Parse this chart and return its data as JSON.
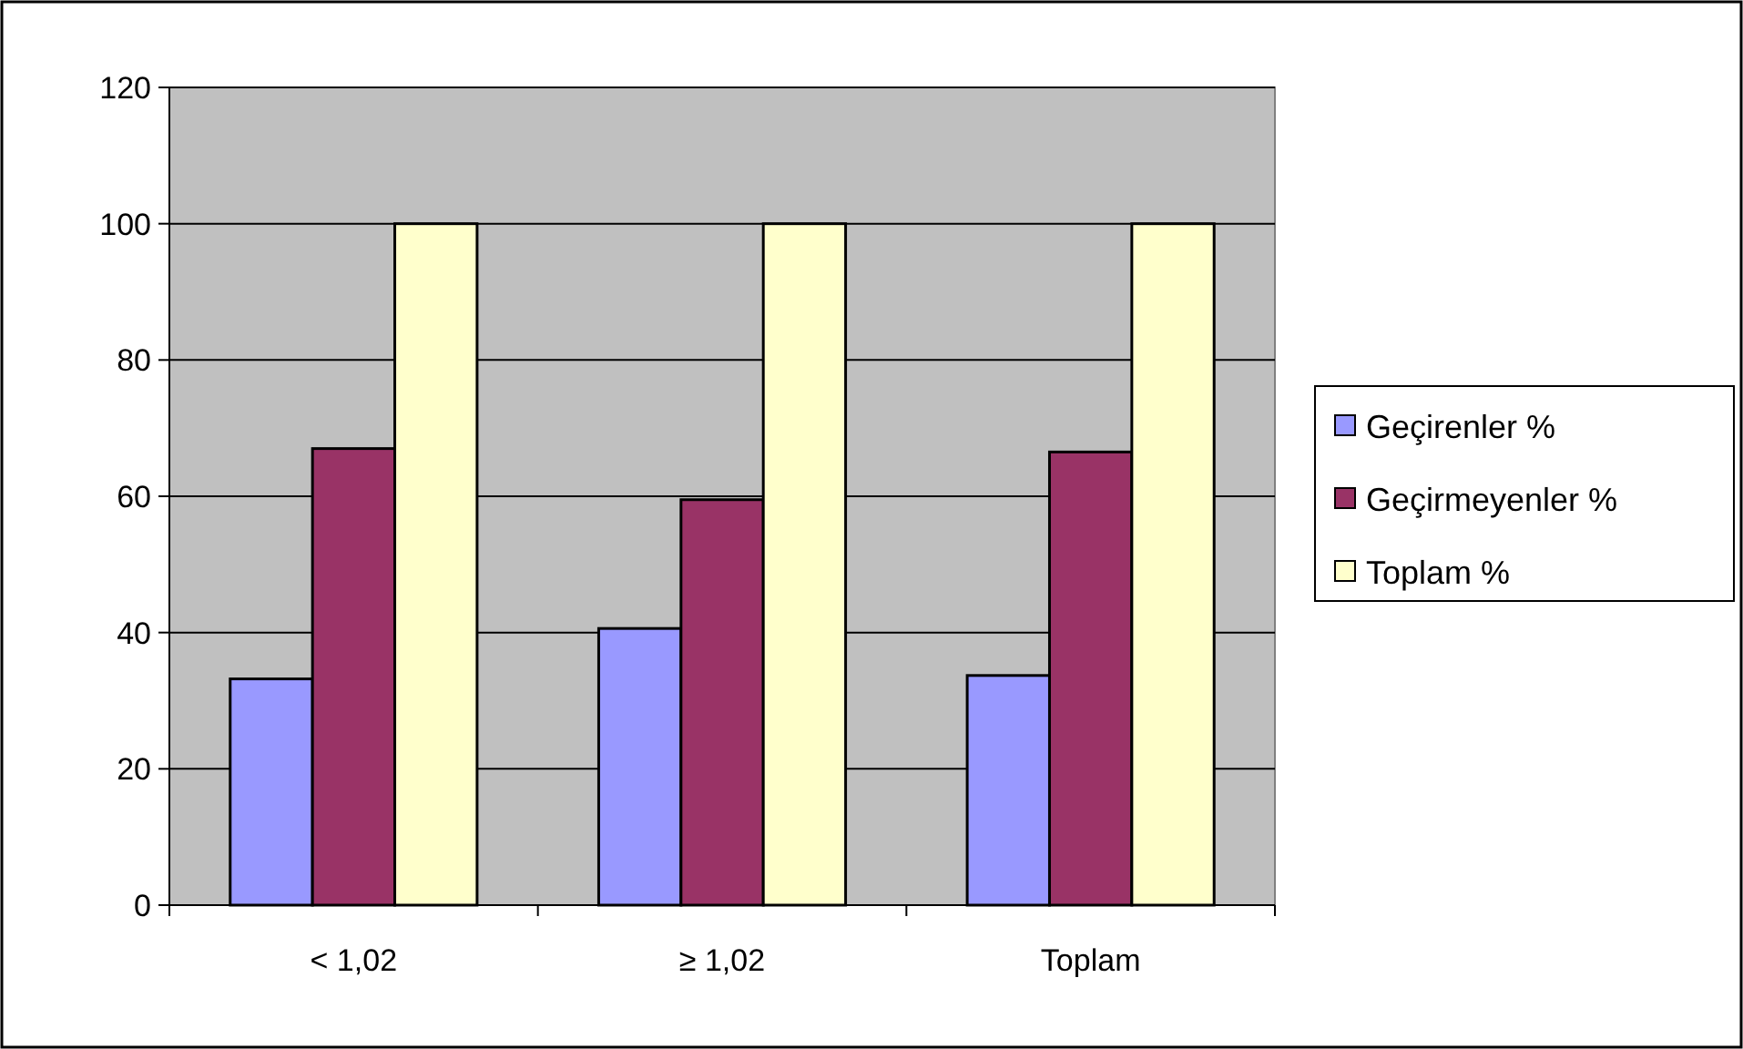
{
  "chart_data": {
    "type": "bar",
    "categories": [
      "< 1,02",
      "≥ 1,02",
      "Toplam"
    ],
    "series": [
      {
        "name": "Geçirenler %",
        "color": "#9999ff",
        "values": [
          33.2,
          40.6,
          33.7
        ]
      },
      {
        "name": "Geçirmeyenler %",
        "color": "#993366",
        "values": [
          67,
          59.5,
          66.5
        ]
      },
      {
        "name": "Toplam %",
        "color": "#ffffcc",
        "values": [
          100,
          100,
          100
        ]
      }
    ],
    "ylim": [
      0,
      120
    ],
    "yticks": [
      0,
      20,
      40,
      60,
      80,
      100,
      120
    ],
    "grid": "y",
    "legend": "right"
  }
}
